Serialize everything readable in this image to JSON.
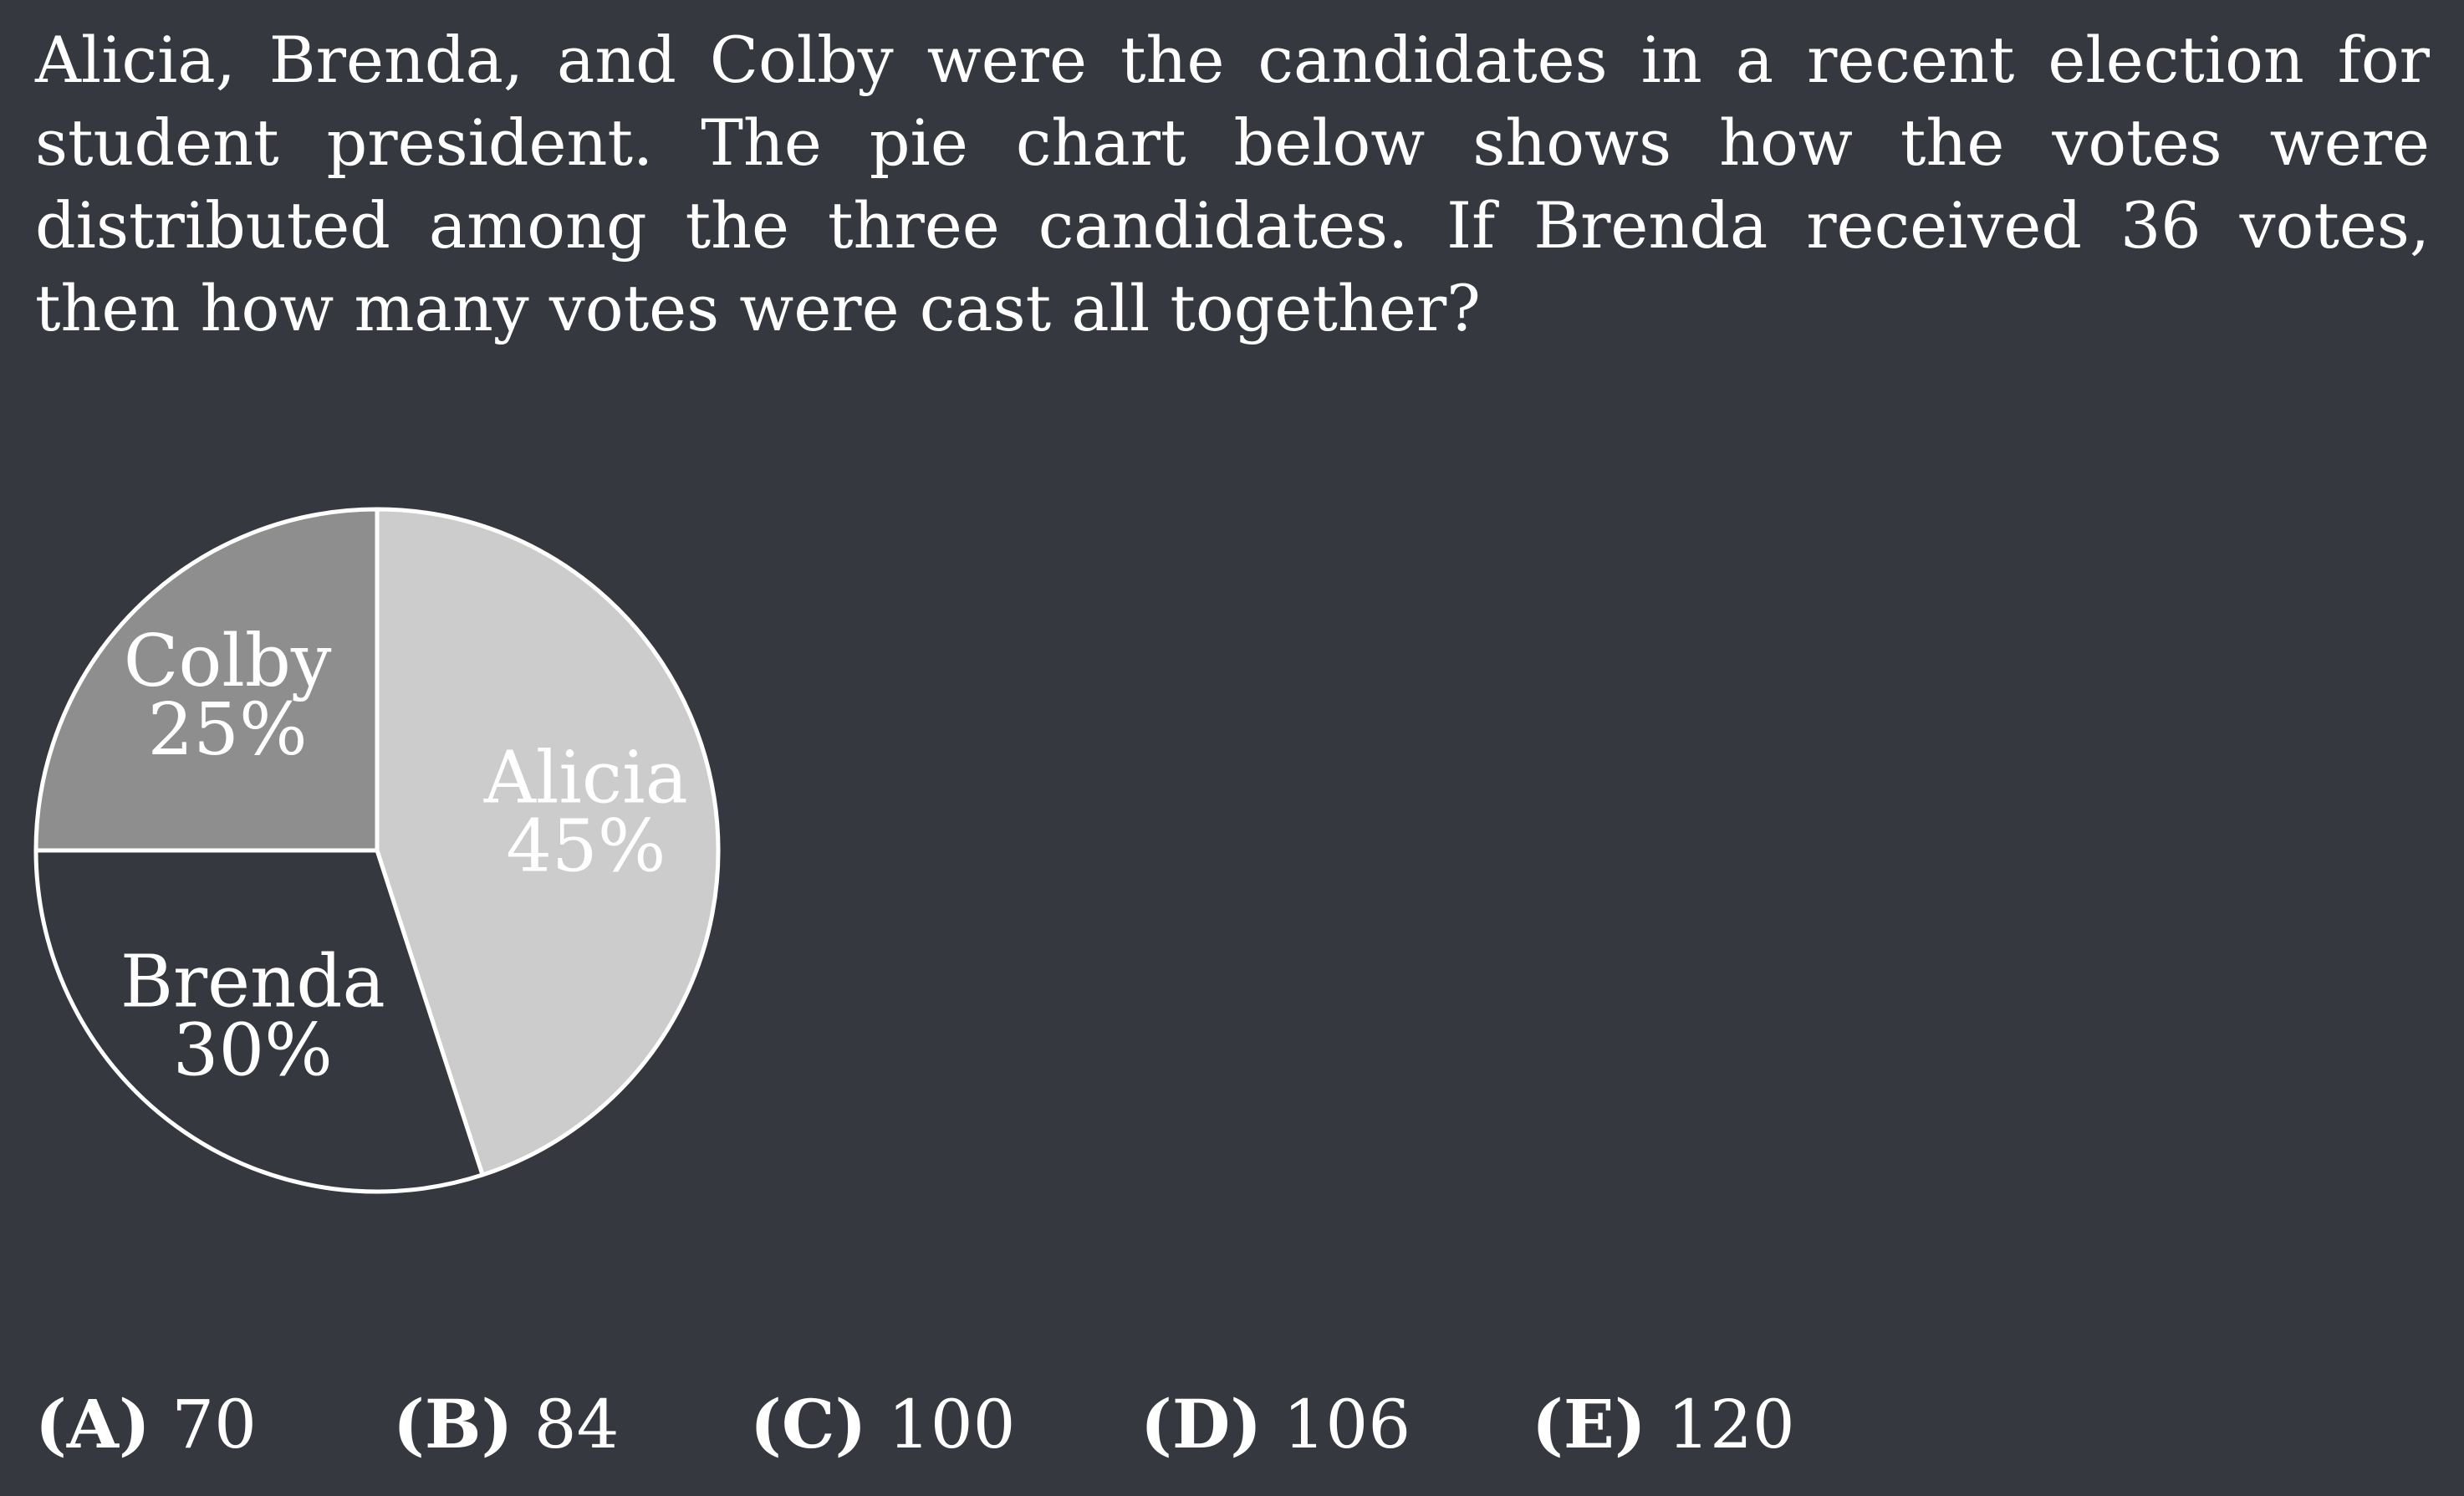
{
  "question": {
    "text": "Alicia, Brenda, and Colby were the candidates in a recent election for student president.  The pie chart below shows how the votes were distributed among the three candidates.  If Brenda received 36 votes, then how many votes were cast all together?"
  },
  "chart_data": {
    "type": "pie",
    "slices": [
      {
        "name": "Alicia",
        "value": 45,
        "label": "45%",
        "color": "#cccccc"
      },
      {
        "name": "Brenda",
        "value": 30,
        "label": "30%",
        "color": "#35383e"
      },
      {
        "name": "Colby",
        "value": 25,
        "label": "25%",
        "color": "#8e8e8e"
      }
    ],
    "stroke_color": "#ffffff",
    "legend": "none"
  },
  "choices": [
    {
      "letter": "(A)",
      "value": "70"
    },
    {
      "letter": "(B)",
      "value": "84"
    },
    {
      "letter": "(C)",
      "value": "100"
    },
    {
      "letter": "(D)",
      "value": "106"
    },
    {
      "letter": "(E)",
      "value": "120"
    }
  ]
}
